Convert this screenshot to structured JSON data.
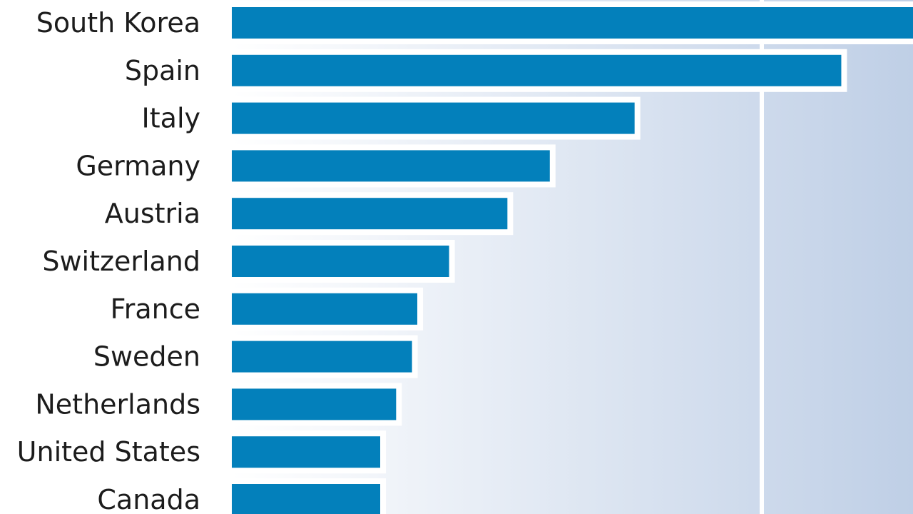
{
  "chart_data": {
    "type": "bar",
    "orientation": "horizontal",
    "categories": [
      "South Korea",
      "Spain",
      "Italy",
      "Germany",
      "Austria",
      "Switzerland",
      "France",
      "Sweden",
      "Netherlands",
      "United States",
      "Canada"
    ],
    "values": [
      1.3,
      1.15,
      0.76,
      0.6,
      0.52,
      0.41,
      0.35,
      0.34,
      0.31,
      0.28,
      0.28
    ],
    "value_units": "relative to the visible gridline (no axis values shown)",
    "xlim": [
      0,
      1.28
    ],
    "gridlines": [
      1.0
    ],
    "title": "",
    "xlabel": "",
    "ylabel": "",
    "bar_color": "#0380bb",
    "background_gradient": [
      "#ffffff",
      "#bfcfe6"
    ],
    "legend": "none"
  }
}
